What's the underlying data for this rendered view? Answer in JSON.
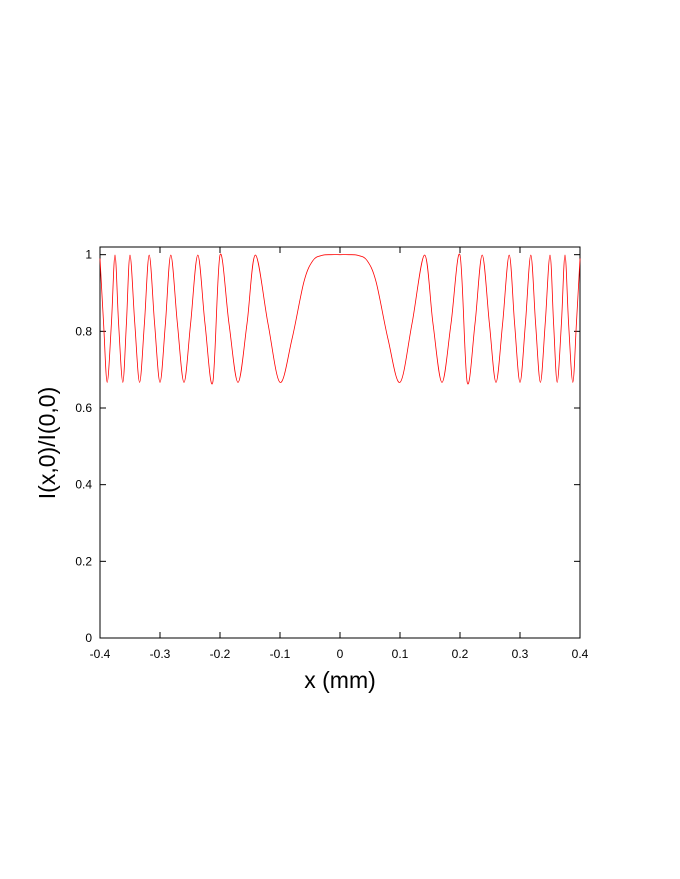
{
  "chart_data": {
    "type": "line",
    "title": "",
    "xlabel": "x (mm)",
    "ylabel": "I(x,0)/I(0,0)",
    "xlim": [
      -0.4,
      0.4
    ],
    "ylim": [
      0,
      1.02
    ],
    "x_ticks": [
      -0.4,
      -0.3,
      -0.2,
      -0.1,
      0,
      0.1,
      0.2,
      0.3,
      0.4
    ],
    "x_tick_labels": [
      "-0.4",
      "-0.3",
      "-0.2",
      "-0.1",
      "0",
      "0.1",
      "0.2",
      "0.3",
      "0.4"
    ],
    "y_ticks": [
      0,
      0.2,
      0.4,
      0.6,
      0.8,
      1
    ],
    "y_tick_labels": [
      "0",
      "0.2",
      "0.4",
      "0.6",
      "0.8",
      "1"
    ],
    "grid": false,
    "legend": "none",
    "line_color": "#ff0000",
    "series": [
      {
        "x": [
          -0.4,
          -0.394,
          -0.388,
          -0.381,
          -0.375,
          -0.369,
          -0.362,
          -0.356,
          -0.35,
          -0.342,
          -0.334,
          -0.326,
          -0.318,
          -0.309,
          -0.3,
          -0.291,
          -0.282,
          -0.271,
          -0.26,
          -0.249,
          -0.237,
          -0.225,
          -0.212,
          -0.2,
          -0.185,
          -0.17,
          -0.155,
          -0.141,
          -0.12,
          -0.1,
          -0.08,
          -0.06,
          -0.045,
          -0.03,
          -0.015,
          0,
          0.015,
          0.03,
          0.045,
          0.06,
          0.08,
          0.1,
          0.12,
          0.141,
          0.155,
          0.17,
          0.185,
          0.2,
          0.212,
          0.225,
          0.237,
          0.249,
          0.26,
          0.271,
          0.282,
          0.291,
          0.3,
          0.309,
          0.318,
          0.326,
          0.334,
          0.342,
          0.35,
          0.356,
          0.362,
          0.369,
          0.375,
          0.381,
          0.388,
          0.394,
          0.4
        ],
        "y": [
          0.99,
          0.82,
          0.667,
          0.82,
          0.999,
          0.82,
          0.667,
          0.82,
          0.999,
          0.82,
          0.667,
          0.82,
          0.999,
          0.82,
          0.667,
          0.82,
          0.999,
          0.82,
          0.667,
          0.82,
          0.999,
          0.82,
          0.667,
          0.999,
          0.82,
          0.667,
          0.82,
          0.999,
          0.82,
          0.667,
          0.78,
          0.93,
          0.985,
          0.998,
          1.0,
          1.0,
          1.0,
          0.998,
          0.985,
          0.93,
          0.78,
          0.667,
          0.82,
          0.999,
          0.82,
          0.667,
          0.82,
          0.999,
          0.667,
          0.82,
          0.999,
          0.82,
          0.667,
          0.82,
          0.999,
          0.82,
          0.667,
          0.82,
          0.999,
          0.82,
          0.667,
          0.82,
          0.999,
          0.82,
          0.667,
          0.82,
          0.999,
          0.82,
          0.667,
          0.82,
          0.99
        ]
      }
    ]
  }
}
